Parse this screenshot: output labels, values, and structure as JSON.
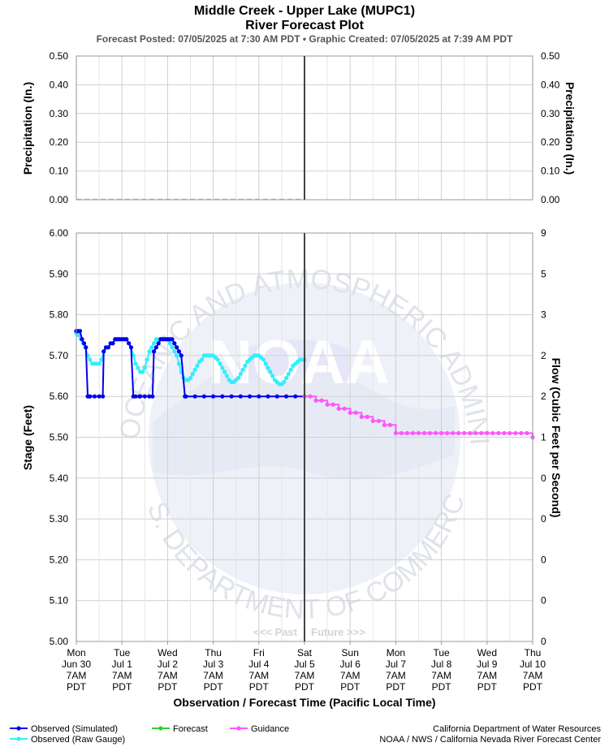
{
  "header": {
    "title_line1": "Middle Creek - Upper Lake (MUPC1)",
    "title_line2": "River Forecast Plot",
    "subtitle": "Forecast Posted: 07/05/2025 at 7:30 AM PDT  •  Graphic Created: 07/05/2025 at 7:39 AM PDT"
  },
  "colors": {
    "observed_simulated": "#0000ee",
    "observed_raw": "#33eeff",
    "forecast": "#33cc33",
    "guidance": "#ff55ff",
    "precip_dash": "#b0b0ee",
    "now_line": "#444444",
    "grid": "#d0d0d0"
  },
  "watermark": {
    "icon": "noaa-seal-icon",
    "center": "NOAA",
    "top_arc": "NATIONAL OCEANIC AND ATMOSPHERIC ADMINISTRATION",
    "bottom_arc": "U.S. DEPARTMENT OF COMMERCE"
  },
  "past_future": {
    "past": "<<< Past",
    "future": "Future >>>"
  },
  "legend": {
    "observed_simulated": "Observed (Simulated)",
    "observed_raw": "Observed (Raw Gauge)",
    "forecast": "Forecast",
    "guidance": "Guidance"
  },
  "credits": {
    "line1": "California Department of Water Resources",
    "line2": "NOAA / NWS / California Nevada River Forecast Center"
  },
  "chart_data": [
    {
      "type": "line",
      "panel": "precipitation",
      "ylabel_left": "Precipitation (In.)",
      "ylabel_right": "Precipitation (In.)",
      "ylim": [
        0,
        0.5
      ],
      "yticks": [
        "0.00",
        "0.10",
        "0.20",
        "0.30",
        "0.40",
        "0.50"
      ],
      "yticks_right": [
        "0.00",
        "0.10",
        "0.20",
        "0.30",
        "0.40",
        "0.50"
      ],
      "xlim_days": [
        0,
        10
      ],
      "grid": true,
      "series": [
        {
          "key": "observed_precip",
          "style": "dashed",
          "x": [
            0,
            5
          ],
          "y": [
            0,
            0
          ]
        }
      ]
    },
    {
      "type": "line",
      "panel": "stage",
      "ylabel": "Stage (Feet)",
      "ylabel_right": "Flow (Cubic Feet per Second)",
      "ylim": [
        5.0,
        6.0
      ],
      "yticks": [
        "5.00",
        "5.10",
        "5.20",
        "5.30",
        "5.40",
        "5.50",
        "5.60",
        "5.70",
        "5.80",
        "5.90",
        "6.00"
      ],
      "yticks_right": [
        "0",
        "0",
        "0",
        "0",
        "0",
        "1",
        "2",
        "2",
        "3",
        "5",
        "9"
      ],
      "xlabel": "Observation / Forecast Time (Pacific Local Time)",
      "xlim_days": [
        0,
        10
      ],
      "now_day": 5,
      "grid": true,
      "x_ticks": [
        {
          "day": "Mon",
          "date": "Jun 30",
          "time": "7AM",
          "tz": "PDT"
        },
        {
          "day": "Tue",
          "date": "Jul 1",
          "time": "7AM",
          "tz": "PDT"
        },
        {
          "day": "Wed",
          "date": "Jul 2",
          "time": "7AM",
          "tz": "PDT"
        },
        {
          "day": "Thu",
          "date": "Jul 3",
          "time": "7AM",
          "tz": "PDT"
        },
        {
          "day": "Fri",
          "date": "Jul 4",
          "time": "7AM",
          "tz": "PDT"
        },
        {
          "day": "Sat",
          "date": "Jul 5",
          "time": "7AM",
          "tz": "PDT"
        },
        {
          "day": "Sun",
          "date": "Jul 6",
          "time": "7AM",
          "tz": "PDT"
        },
        {
          "day": "Mon",
          "date": "Jul 7",
          "time": "7AM",
          "tz": "PDT"
        },
        {
          "day": "Tue",
          "date": "Jul 8",
          "time": "7AM",
          "tz": "PDT"
        },
        {
          "day": "Wed",
          "date": "Jul 9",
          "time": "7AM",
          "tz": "PDT"
        },
        {
          "day": "Thu",
          "date": "Jul 10",
          "time": "7AM",
          "tz": "PDT"
        }
      ],
      "series": [
        {
          "key": "observed_simulated",
          "x": [
            0.0,
            0.04,
            0.08,
            0.125,
            0.17,
            0.21,
            0.25,
            0.29,
            0.3,
            0.4,
            0.5,
            0.58,
            0.6,
            0.65,
            0.7,
            0.75,
            0.8,
            0.85,
            0.9,
            0.95,
            1.0,
            1.05,
            1.1,
            1.15,
            1.2,
            1.25,
            1.3,
            1.38,
            1.4,
            1.5,
            1.6,
            1.67,
            1.7,
            1.75,
            1.8,
            1.85,
            1.9,
            1.95,
            2.0,
            2.05,
            2.1,
            2.15,
            2.2,
            2.25,
            2.3,
            2.38,
            2.4,
            2.6,
            2.8,
            3.0,
            3.2,
            3.4,
            3.6,
            3.8,
            4.0,
            4.2,
            4.4,
            4.6,
            4.8,
            5.0
          ],
          "y": [
            5.76,
            5.76,
            5.76,
            5.74,
            5.73,
            5.72,
            5.6,
            5.6,
            5.6,
            5.6,
            5.6,
            5.6,
            5.71,
            5.72,
            5.72,
            5.73,
            5.73,
            5.74,
            5.74,
            5.74,
            5.74,
            5.74,
            5.74,
            5.73,
            5.72,
            5.6,
            5.6,
            5.6,
            5.6,
            5.6,
            5.6,
            5.6,
            5.71,
            5.72,
            5.73,
            5.74,
            5.74,
            5.74,
            5.74,
            5.74,
            5.74,
            5.73,
            5.72,
            5.71,
            5.7,
            5.6,
            5.6,
            5.6,
            5.6,
            5.6,
            5.6,
            5.6,
            5.6,
            5.6,
            5.6,
            5.6,
            5.6,
            5.6,
            5.6,
            5.6
          ]
        },
        {
          "key": "observed_raw",
          "x": [
            0.0,
            0.05,
            0.1,
            0.15,
            0.2,
            0.25,
            0.3,
            0.35,
            0.4,
            0.45,
            0.5,
            0.55,
            0.6,
            0.65,
            0.7,
            0.75,
            0.8,
            0.85,
            0.9,
            0.95,
            1.0,
            1.05,
            1.1,
            1.15,
            1.2,
            1.25,
            1.3,
            1.35,
            1.4,
            1.45,
            1.5,
            1.55,
            1.6,
            1.65,
            1.7,
            1.75,
            1.8,
            1.85,
            1.9,
            1.95,
            2.0,
            2.05,
            2.1,
            2.15,
            2.2,
            2.25,
            2.3,
            2.35,
            2.4,
            2.45,
            2.5,
            2.55,
            2.6,
            2.65,
            2.7,
            2.75,
            2.8,
            2.85,
            2.9,
            2.95,
            3.0,
            3.05,
            3.1,
            3.15,
            3.2,
            3.25,
            3.3,
            3.35,
            3.4,
            3.45,
            3.5,
            3.55,
            3.6,
            3.65,
            3.7,
            3.75,
            3.8,
            3.85,
            3.9,
            3.95,
            4.0,
            4.05,
            4.1,
            4.15,
            4.2,
            4.25,
            4.3,
            4.35,
            4.4,
            4.45,
            4.5,
            4.55,
            4.6,
            4.65,
            4.7,
            4.75,
            4.8,
            4.85,
            4.9,
            4.95,
            5.0
          ],
          "y": [
            5.755,
            5.75,
            5.74,
            5.73,
            5.72,
            5.7,
            5.69,
            5.68,
            5.68,
            5.68,
            5.68,
            5.69,
            5.71,
            5.72,
            5.72,
            5.73,
            5.73,
            5.74,
            5.74,
            5.74,
            5.74,
            5.74,
            5.74,
            5.73,
            5.72,
            5.7,
            5.68,
            5.67,
            5.66,
            5.66,
            5.67,
            5.69,
            5.71,
            5.72,
            5.73,
            5.74,
            5.74,
            5.74,
            5.74,
            5.74,
            5.74,
            5.73,
            5.72,
            5.71,
            5.7,
            5.68,
            5.66,
            5.645,
            5.64,
            5.64,
            5.645,
            5.655,
            5.665,
            5.675,
            5.685,
            5.69,
            5.7,
            5.7,
            5.7,
            5.7,
            5.7,
            5.695,
            5.69,
            5.68,
            5.67,
            5.66,
            5.65,
            5.64,
            5.635,
            5.635,
            5.64,
            5.645,
            5.655,
            5.665,
            5.675,
            5.685,
            5.69,
            5.695,
            5.7,
            5.7,
            5.7,
            5.695,
            5.69,
            5.68,
            5.67,
            5.66,
            5.65,
            5.64,
            5.635,
            5.63,
            5.63,
            5.635,
            5.645,
            5.655,
            5.665,
            5.675,
            5.68,
            5.685,
            5.69,
            5.69,
            5.69
          ]
        },
        {
          "key": "guidance",
          "step": true,
          "x": [
            5.0,
            5.25,
            5.5,
            5.75,
            6.0,
            6.25,
            6.5,
            6.75,
            7.0,
            10.0
          ],
          "y": [
            5.6,
            5.59,
            5.58,
            5.57,
            5.56,
            5.55,
            5.54,
            5.53,
            5.51,
            5.5
          ]
        }
      ]
    }
  ]
}
